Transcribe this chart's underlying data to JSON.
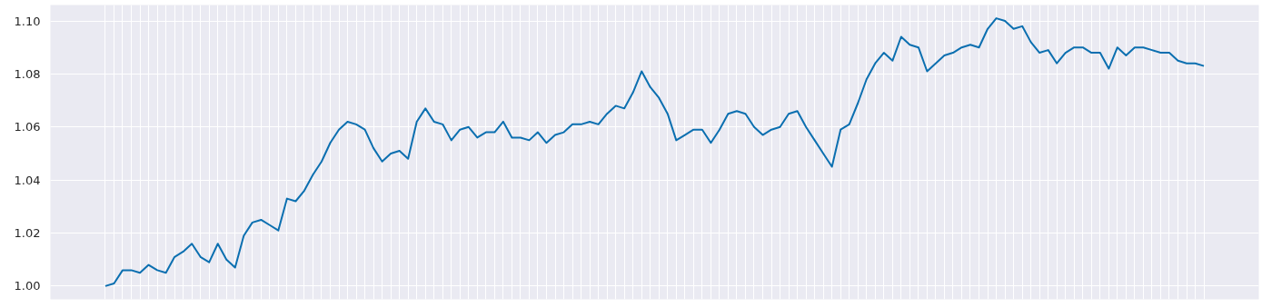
{
  "chart_data": {
    "type": "line",
    "categories": [
      null,
      null,
      null,
      null,
      null,
      null,
      null,
      null,
      null,
      null,
      null,
      null,
      null,
      null,
      null,
      null,
      null,
      null,
      null,
      null,
      null,
      null,
      null,
      null,
      null,
      null,
      null,
      null,
      null,
      null,
      null,
      null,
      null,
      null,
      null,
      null,
      null,
      null,
      null,
      null,
      null,
      null,
      null,
      null,
      null,
      null,
      null,
      null,
      null,
      null,
      null,
      null,
      null,
      null,
      null,
      null,
      null,
      null,
      null,
      null,
      null,
      null,
      null,
      null,
      null,
      null,
      null,
      null,
      null,
      null,
      null,
      null,
      null,
      null,
      null,
      null,
      null,
      null,
      null,
      null,
      null,
      null,
      null,
      null,
      null,
      null,
      null,
      null,
      null,
      null,
      null,
      null,
      null,
      null,
      null,
      null,
      null,
      null,
      null,
      null,
      null,
      null,
      null,
      null,
      null,
      null,
      null,
      null,
      null,
      null,
      null,
      null,
      null,
      null,
      null,
      null,
      null,
      null,
      null,
      null,
      null,
      null,
      null,
      null,
      null,
      null,
      null,
      null
    ],
    "series": [
      {
        "color": "#0b6fb0",
        "values": [
          1.0,
          1.001,
          1.006,
          1.006,
          1.005,
          1.008,
          1.006,
          1.005,
          1.011,
          1.013,
          1.016,
          1.011,
          1.009,
          1.016,
          1.01,
          1.007,
          1.019,
          1.024,
          1.025,
          1.023,
          1.021,
          1.033,
          1.032,
          1.036,
          1.042,
          1.047,
          1.054,
          1.059,
          1.062,
          1.061,
          1.059,
          1.052,
          1.047,
          1.05,
          1.051,
          1.048,
          1.062,
          1.067,
          1.062,
          1.061,
          1.055,
          1.059,
          1.06,
          1.056,
          1.058,
          1.058,
          1.062,
          1.056,
          1.056,
          1.055,
          1.058,
          1.054,
          1.057,
          1.058,
          1.061,
          1.061,
          1.062,
          1.061,
          1.065,
          1.068,
          1.067,
          1.073,
          1.081,
          1.075,
          1.071,
          1.065,
          1.055,
          1.057,
          1.059,
          1.059,
          1.054,
          1.059,
          1.065,
          1.066,
          1.065,
          1.06,
          1.057,
          1.059,
          1.06,
          1.065,
          1.066,
          1.06,
          1.055,
          1.05,
          1.045,
          1.059,
          1.061,
          1.069,
          1.078,
          1.084,
          1.088,
          1.085,
          1.094,
          1.091,
          1.09,
          1.081,
          1.084,
          1.087,
          1.088,
          1.09,
          1.091,
          1.09,
          1.097,
          1.101,
          1.1,
          1.097,
          1.098,
          1.092,
          1.088,
          1.089,
          1.084,
          1.088,
          1.09,
          1.09,
          1.088,
          1.088,
          1.082,
          1.09,
          1.087,
          1.09,
          1.09,
          1.089,
          1.088,
          1.088,
          1.085,
          1.084,
          1.084,
          1.083
        ]
      }
    ],
    "ylim": [
      0.995,
      1.106
    ],
    "yticks": [
      {
        "value": 1.0,
        "label": "1.00"
      },
      {
        "value": 1.02,
        "label": "1.02"
      },
      {
        "value": 1.04,
        "label": "1.04"
      },
      {
        "value": 1.06,
        "label": "1.06"
      },
      {
        "value": 1.08,
        "label": "1.08"
      },
      {
        "value": 1.1,
        "label": "1.10"
      }
    ],
    "grid": true,
    "tick_labels": "y",
    "line_style": "solid",
    "marker": "none"
  }
}
